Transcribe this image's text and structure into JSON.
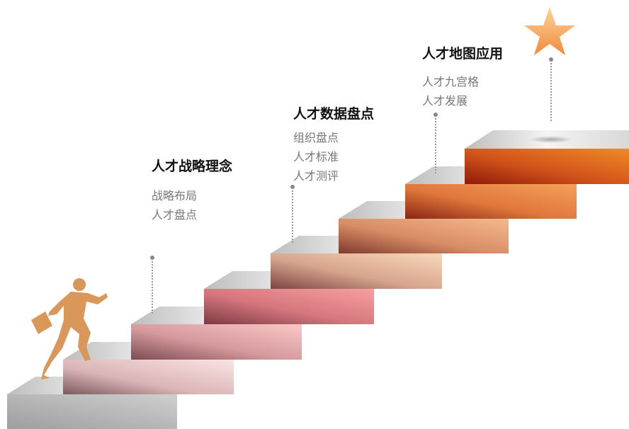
{
  "stages": [
    {
      "title": "人才战略理念",
      "items": [
        "战略布局",
        "人才盘点"
      ]
    },
    {
      "title": "人才数据盘点",
      "items": [
        "组织盘点",
        "人才标准",
        "人才测评"
      ]
    },
    {
      "title": "人才地图应用",
      "items": [
        "人才九宫格",
        "人才发展"
      ]
    }
  ]
}
